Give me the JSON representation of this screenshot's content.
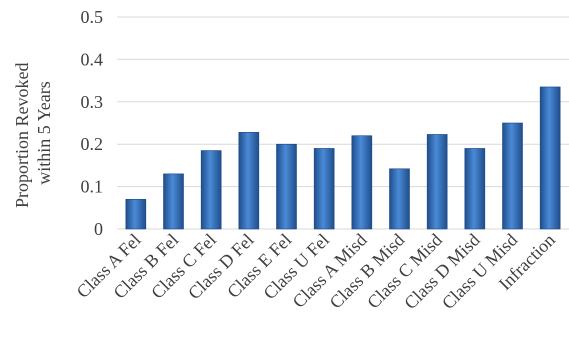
{
  "chart_data": {
    "type": "bar",
    "title": "",
    "xlabel": "",
    "ylabel_lines": [
      "Proportion Revoked",
      "within 5 Years"
    ],
    "ylim": [
      0,
      0.5
    ],
    "yticks": [
      "0",
      "0.1",
      "0.2",
      "0.3",
      "0.4",
      "0.5"
    ],
    "grid": true,
    "legend": "none",
    "bar_color": "#2e6cb5",
    "categories": [
      "Class A Fel",
      "Class B Fel",
      "Class C Fel",
      "Class D Fel",
      "Class E Fel",
      "Class U Fel",
      "Class A Misd",
      "Class B Misd",
      "Class C Misd",
      "Class D Misd",
      "Class U Misd",
      "Infraction"
    ],
    "values": [
      0.07,
      0.13,
      0.185,
      0.228,
      0.2,
      0.19,
      0.22,
      0.142,
      0.223,
      0.19,
      0.25,
      0.335
    ]
  }
}
